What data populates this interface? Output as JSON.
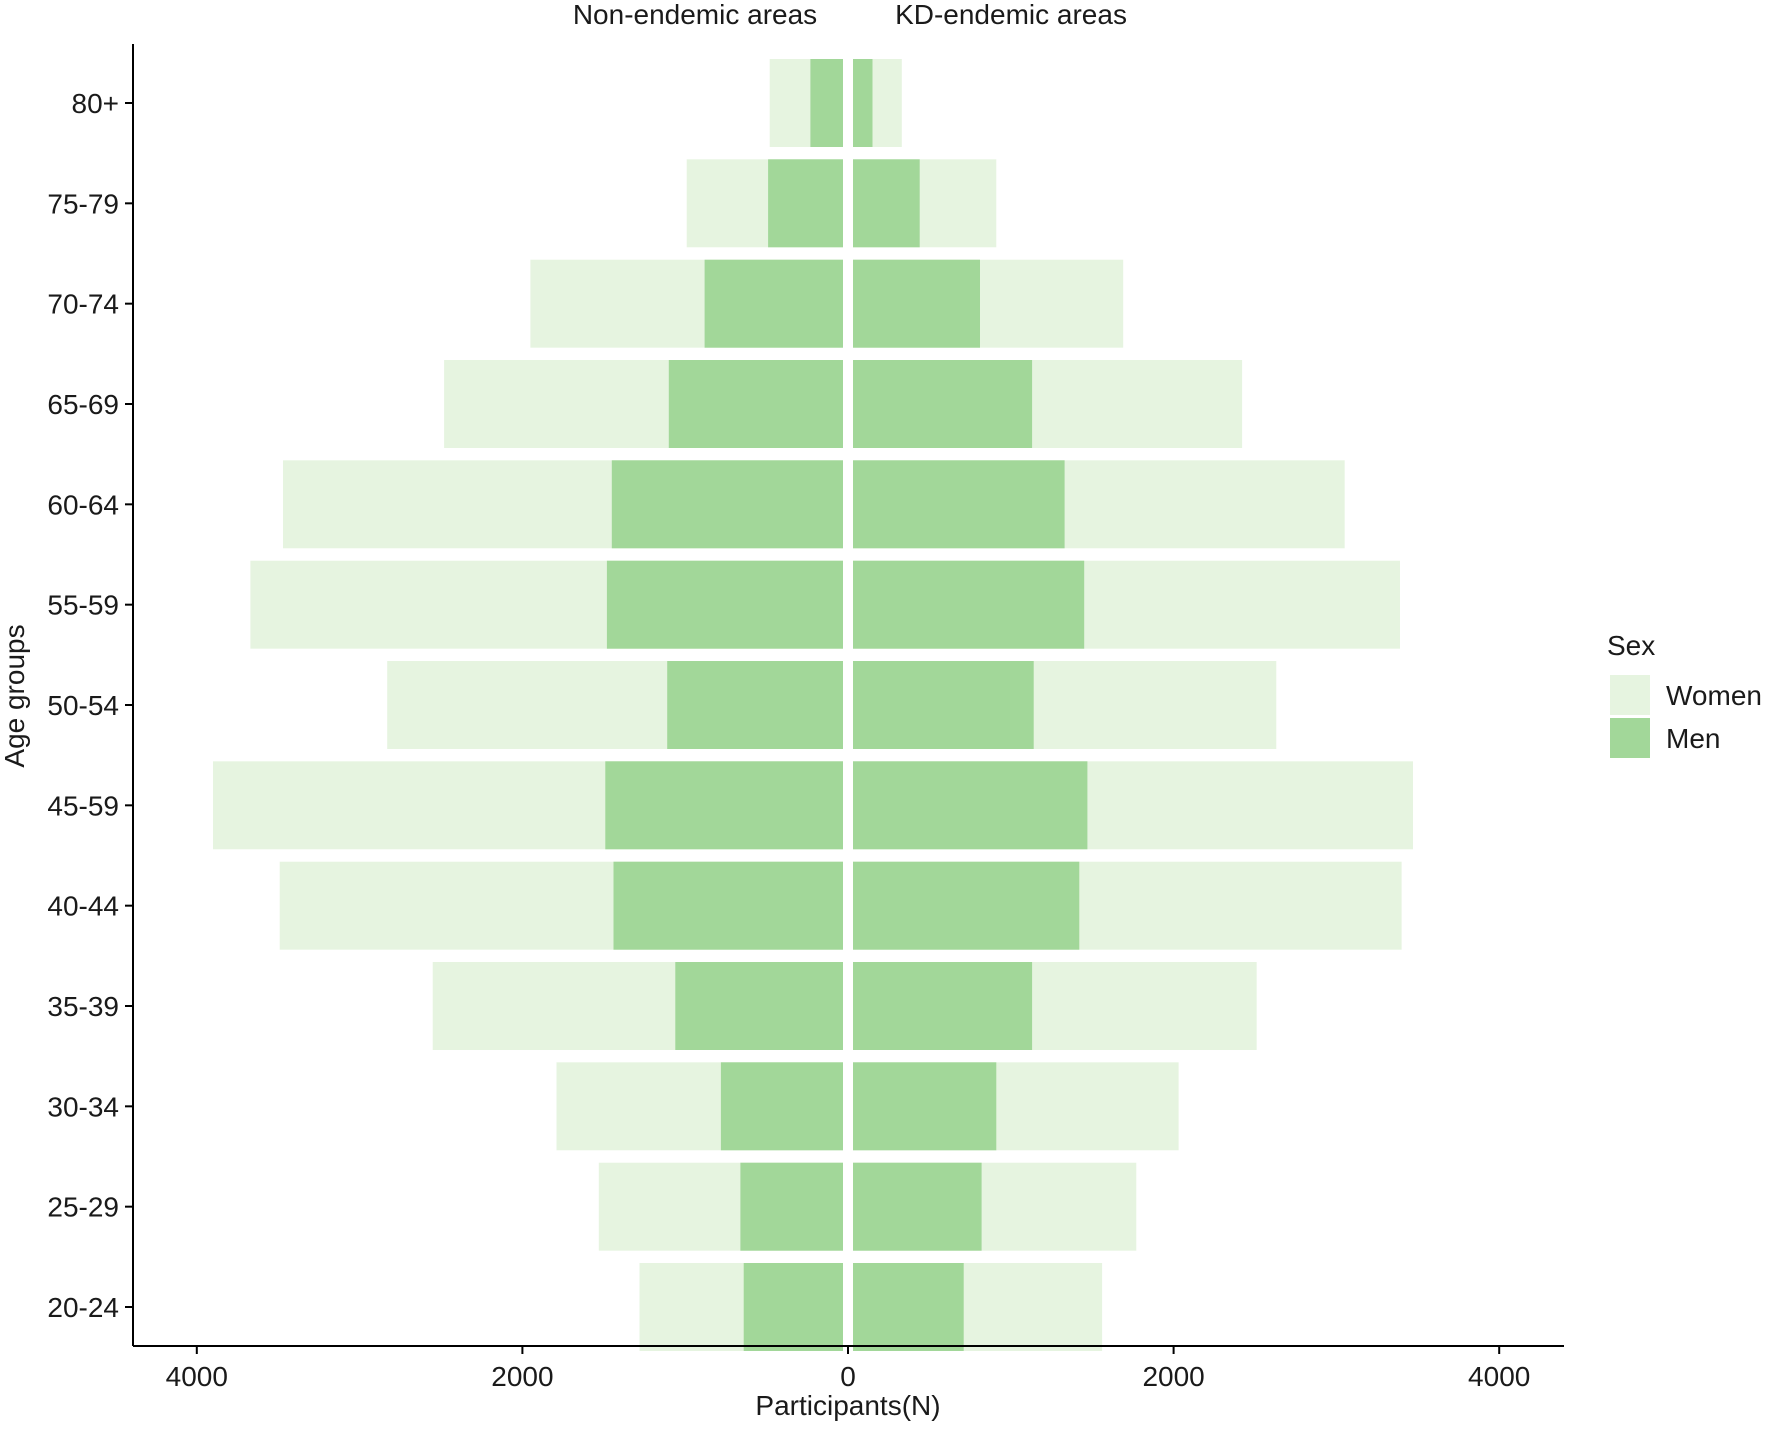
{
  "colors": {
    "women": "#e6f4e0",
    "men": "#a2d799",
    "axis": "#000000",
    "text": "#1a1a1a"
  },
  "chart_data": {
    "type": "bar",
    "orientation": "horizontal-population-pyramid",
    "stacking": "overlay",
    "title": "",
    "xlabel": "Participants(N)",
    "ylabel": "Age groups",
    "panels": {
      "left": "Non-endemic areas",
      "right": "KD-endemic areas"
    },
    "xlim": [
      -4400,
      4400
    ],
    "xticks": [
      -4000,
      -2000,
      0,
      2000,
      4000
    ],
    "xtick_labels": [
      "4000",
      "2000",
      "0",
      "2000",
      "4000"
    ],
    "categories": [
      "80+",
      "75-79",
      "70-74",
      "65-69",
      "60-64",
      "55-59",
      "50-54",
      "45-59",
      "40-44",
      "35-39",
      "30-34",
      "25-29",
      "20-24"
    ],
    "legend": {
      "title": "Sex",
      "placement": "right",
      "entries": [
        "Women",
        "Men"
      ]
    },
    "series": [
      {
        "name": "Women",
        "area": "Non-endemic areas",
        "values": [
          450,
          960,
          1920,
          2450,
          3440,
          3640,
          2800,
          3870,
          3460,
          2520,
          1760,
          1500,
          1250
        ]
      },
      {
        "name": "Men",
        "area": "Non-endemic areas",
        "values": [
          200,
          460,
          850,
          1070,
          1420,
          1450,
          1080,
          1460,
          1410,
          1030,
          750,
          630,
          610
        ]
      },
      {
        "name": "Women",
        "area": "KD-endemic areas",
        "values": [
          300,
          880,
          1660,
          2390,
          3020,
          3360,
          2600,
          3440,
          3370,
          2480,
          2000,
          1740,
          1530
        ]
      },
      {
        "name": "Men",
        "area": "KD-endemic areas",
        "values": [
          120,
          410,
          780,
          1100,
          1300,
          1420,
          1110,
          1440,
          1390,
          1100,
          880,
          790,
          680
        ]
      }
    ],
    "grid": false
  }
}
